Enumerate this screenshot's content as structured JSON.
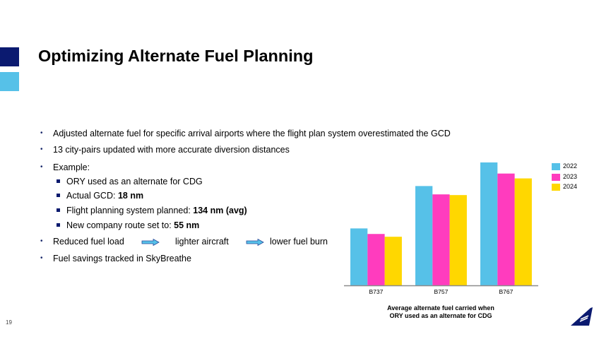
{
  "title": "Optimizing Alternate Fuel Planning",
  "bullets": [
    "Adjusted alternate fuel for specific arrival airports where the flight plan system overestimated the GCD",
    "13 city-pairs updated with more accurate diversion distances",
    "Example:"
  ],
  "sub_bullets": [
    {
      "text": "ORY used as an alternate for CDG",
      "bold": ""
    },
    {
      "text": "Actual GCD: ",
      "bold": "18 nm"
    },
    {
      "text": "Flight planning system planned: ",
      "bold": "134 nm (avg)"
    },
    {
      "text": "New company route set to: ",
      "bold": "55 nm"
    }
  ],
  "flow": [
    "Reduced fuel load",
    "lighter aircraft",
    "lower fuel burn"
  ],
  "last_bullet": "Fuel savings tracked in SkyBreathe",
  "page_number": "19",
  "colors": {
    "navy": "#0b1a70",
    "light_blue": "#56c1e8",
    "pink": "#ff3cbe",
    "yellow": "#ffd700"
  },
  "chart_data": {
    "type": "bar",
    "title": "Average alternate fuel carried when ORY used as an alternate for CDG",
    "categories": [
      "B737",
      "B757",
      "B767"
    ],
    "series": [
      {
        "name": "2022",
        "color": "#56c1e8",
        "values": [
          82,
          143,
          177
        ]
      },
      {
        "name": "2023",
        "color": "#ff3cbe",
        "values": [
          74,
          131,
          161
        ]
      },
      {
        "name": "2024",
        "color": "#ffd700",
        "values": [
          70,
          130,
          154
        ]
      }
    ],
    "ylim": [
      0,
      180
    ],
    "xlabel": "",
    "ylabel": "",
    "grid": false,
    "legend": "right"
  }
}
